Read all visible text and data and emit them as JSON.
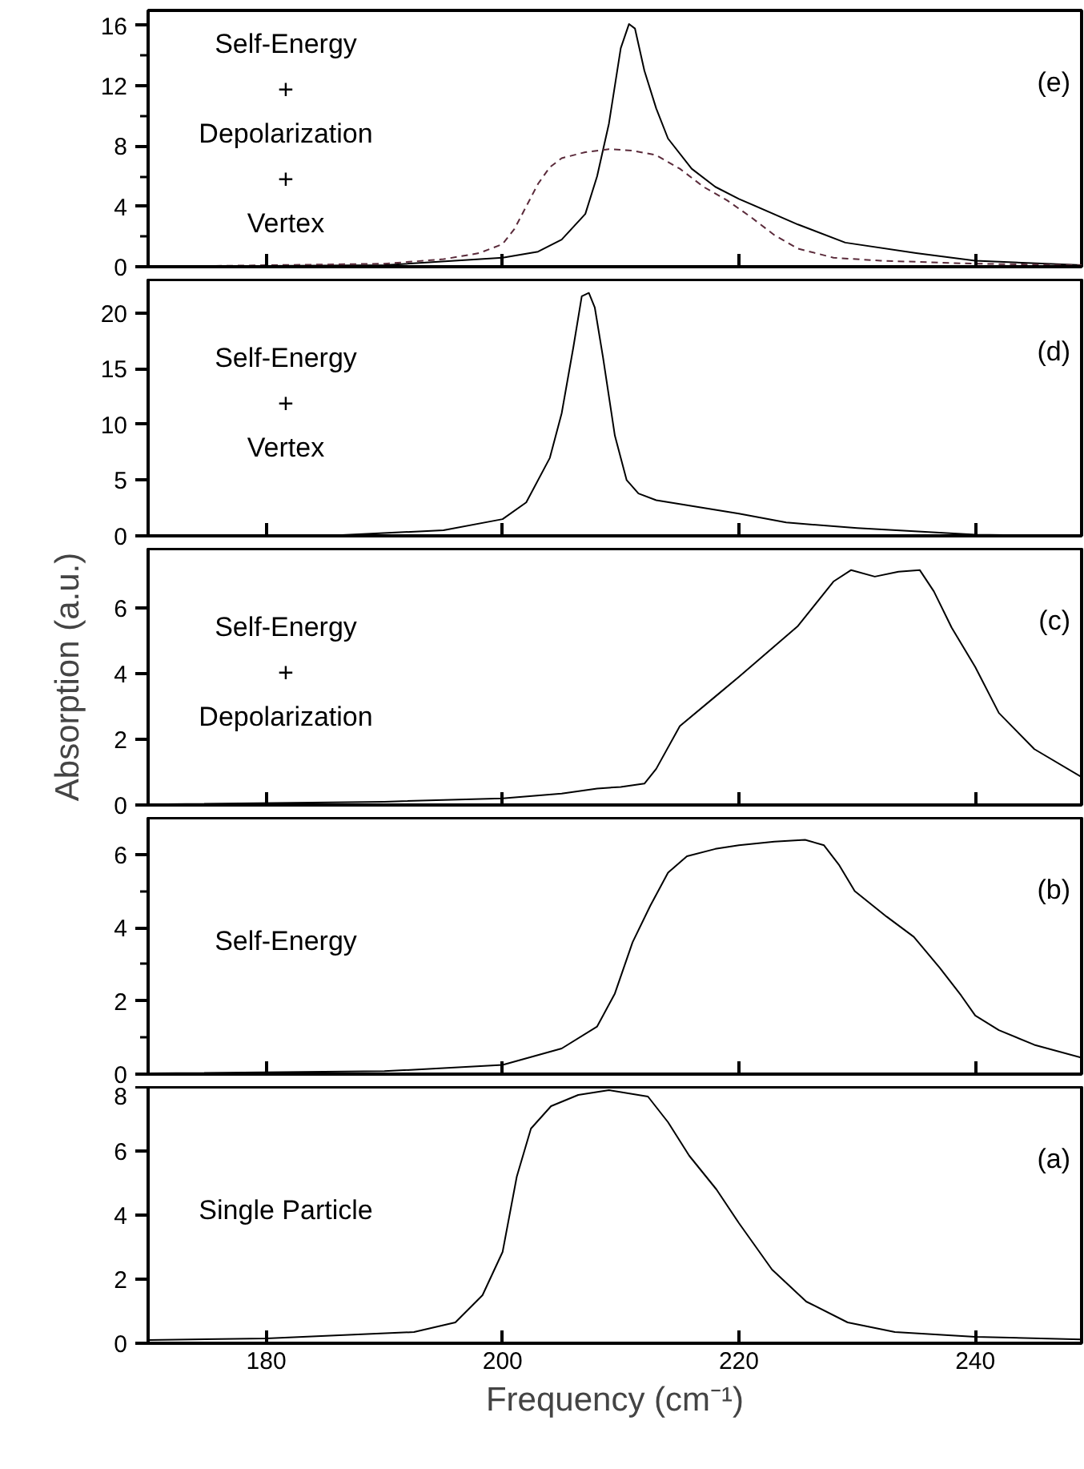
{
  "chart_data": [
    {
      "type": "line",
      "annotations": [
        "Self-Energy\n+\nDepolarization\n+\nVertex",
        "(e)"
      ],
      "xlim": [
        170,
        249
      ],
      "xticks": [
        180,
        200,
        220,
        240
      ],
      "ylim": [
        0,
        17
      ],
      "yticks": [
        0,
        {
          "value": 2,
          "label": null
        },
        4,
        {
          "value": 6,
          "label": null
        },
        8,
        {
          "value": 10,
          "label": null
        },
        12,
        {
          "value": 14,
          "label": null
        },
        16
      ],
      "tick_labels": "y",
      "line_style": "solid",
      "series": [
        {
          "color": "#000000",
          "x": [
            170,
            190,
            200,
            203,
            205,
            207,
            208,
            209,
            210,
            210.7,
            211.2,
            212,
            213,
            214,
            216,
            218,
            220,
            225,
            229,
            235,
            240,
            249
          ],
          "values": [
            0,
            0.1,
            0.6,
            1.0,
            1.8,
            3.5,
            6,
            9.5,
            14.5,
            16.1,
            15.8,
            13,
            10.5,
            8.5,
            6.5,
            5.3,
            4.5,
            2.8,
            1.6,
            0.9,
            0.4,
            0.1
          ]
        },
        {
          "color": "#5a2a3a",
          "line_style": "dashed",
          "x": [
            170,
            190,
            195,
            198,
            200,
            201,
            202,
            203,
            204,
            205,
            207,
            209,
            211,
            213,
            215,
            217,
            219,
            221,
            223,
            225,
            228,
            232,
            240,
            249
          ],
          "values": [
            0,
            0.2,
            0.5,
            0.9,
            1.5,
            2.5,
            4,
            5.5,
            6.6,
            7.2,
            7.6,
            7.8,
            7.7,
            7.4,
            6.5,
            5.3,
            4.4,
            3.3,
            2.1,
            1.2,
            0.6,
            0.4,
            0.2,
            0.1
          ]
        }
      ]
    },
    {
      "type": "line",
      "annotations": [
        "Self-Energy\n+\nVertex",
        "(d)"
      ],
      "xlim": [
        170,
        249
      ],
      "xticks": [
        180,
        200,
        220,
        240
      ],
      "ylim": [
        0,
        23
      ],
      "yticks": [
        0,
        5,
        10,
        15,
        20
      ],
      "tick_labels": "y",
      "series": [
        {
          "color": "#000000",
          "x": [
            170,
            185,
            195,
            200,
            202,
            204,
            205,
            206,
            206.7,
            207.3,
            207.8,
            208.5,
            209.5,
            210.5,
            211.5,
            213,
            220,
            224,
            230,
            240,
            249
          ],
          "values": [
            0,
            0,
            0.5,
            1.5,
            3,
            7,
            11,
            17,
            21.5,
            21.8,
            20.5,
            16,
            9,
            5,
            3.8,
            3.2,
            2.0,
            1.2,
            0.7,
            0.1,
            0
          ]
        }
      ]
    },
    {
      "type": "line",
      "ylabel": "Absorption (a.u.)",
      "annotations": [
        "Self-Energy\n+\nDepolarization",
        "(c)"
      ],
      "xlim": [
        170,
        249
      ],
      "xticks": [
        180,
        200,
        220,
        240
      ],
      "ylim": [
        0,
        7.8
      ],
      "yticks": [
        0,
        2,
        4,
        6
      ],
      "tick_labels": "y",
      "series": [
        {
          "color": "#000000",
          "x": [
            170,
            190,
            200,
            205,
            208,
            210,
            212,
            213,
            215,
            218,
            220,
            225,
            228,
            229.5,
            231.5,
            233.5,
            235.3,
            236.5,
            238,
            240,
            242,
            245,
            249
          ],
          "values": [
            0.02,
            0.1,
            0.2,
            0.35,
            0.5,
            0.55,
            0.65,
            1.1,
            2.4,
            3.3,
            3.9,
            5.45,
            6.8,
            7.15,
            6.95,
            7.1,
            7.15,
            6.5,
            5.4,
            4.2,
            2.8,
            1.7,
            0.85
          ]
        }
      ]
    },
    {
      "type": "line",
      "annotations": [
        "Self-Energy",
        "(b)"
      ],
      "xlim": [
        170,
        249
      ],
      "xticks": [
        180,
        200,
        220,
        240
      ],
      "ylim": [
        0,
        7
      ],
      "yticks": [
        0,
        {
          "value": 1,
          "label": null
        },
        2,
        {
          "value": 3,
          "label": null
        },
        4,
        {
          "value": 5,
          "label": null
        },
        6
      ],
      "tick_labels": "y",
      "series": [
        {
          "color": "#000000",
          "x": [
            170,
            190,
            200,
            205,
            208,
            209.5,
            211,
            212.5,
            214,
            215.6,
            218,
            220,
            223,
            225.6,
            227.2,
            228.5,
            229.8,
            232.5,
            234.8,
            237,
            238.8,
            240,
            242,
            245,
            249
          ],
          "values": [
            0.02,
            0.08,
            0.25,
            0.7,
            1.3,
            2.2,
            3.6,
            4.6,
            5.5,
            5.95,
            6.15,
            6.25,
            6.35,
            6.4,
            6.25,
            5.7,
            5.0,
            4.3,
            3.75,
            2.9,
            2.15,
            1.6,
            1.2,
            0.8,
            0.45
          ]
        }
      ]
    },
    {
      "type": "line",
      "xlabel": "Frequency (cm⁻¹)",
      "annotations": [
        "Single Particle",
        "(a)"
      ],
      "xlim": [
        170,
        249
      ],
      "xticks": [
        180,
        200,
        220,
        240
      ],
      "ylim": [
        0,
        8
      ],
      "yticks": [
        0,
        2,
        4,
        6,
        8
      ],
      "series": [
        {
          "color": "#000000",
          "x": [
            170,
            180,
            192.5,
            196,
            198.3,
            200,
            201.2,
            202.4,
            204.1,
            206.4,
            209,
            212.3,
            214,
            215.8,
            218.1,
            220,
            222.8,
            225.7,
            229.2,
            233.2,
            240,
            249
          ],
          "values": [
            0.1,
            0.15,
            0.35,
            0.65,
            1.5,
            2.85,
            5.2,
            6.7,
            7.4,
            7.75,
            7.9,
            7.7,
            6.9,
            5.85,
            4.8,
            3.75,
            2.3,
            1.3,
            0.65,
            0.35,
            0.2,
            0.12
          ]
        }
      ]
    }
  ]
}
